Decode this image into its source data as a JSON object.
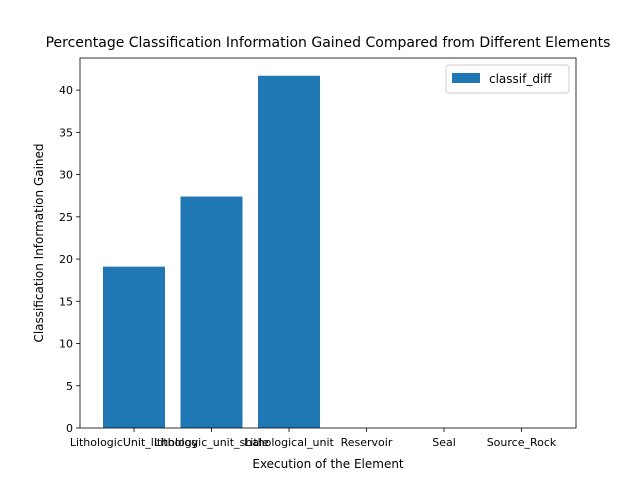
{
  "chart_data": {
    "type": "bar",
    "title": "Percentage Classification Information Gained Compared from Different Elements",
    "xlabel": "Execution of the Element",
    "ylabel": "Classification Information Gained",
    "categories": [
      "LithologicUnit_lithology",
      "Lithologic_unit_shale",
      "Lithological_unit",
      "Reservoir",
      "Seal",
      "Source_Rock"
    ],
    "series": [
      {
        "name": "classif_diff",
        "values": [
          19.1,
          27.4,
          41.7,
          0,
          0,
          0
        ]
      }
    ],
    "ylim": [
      0,
      43.8
    ],
    "yticks": [
      0,
      5,
      10,
      15,
      20,
      25,
      30,
      35,
      40
    ],
    "grid": false,
    "legend_position": "top-right",
    "bar_color": "#1f77b4"
  }
}
